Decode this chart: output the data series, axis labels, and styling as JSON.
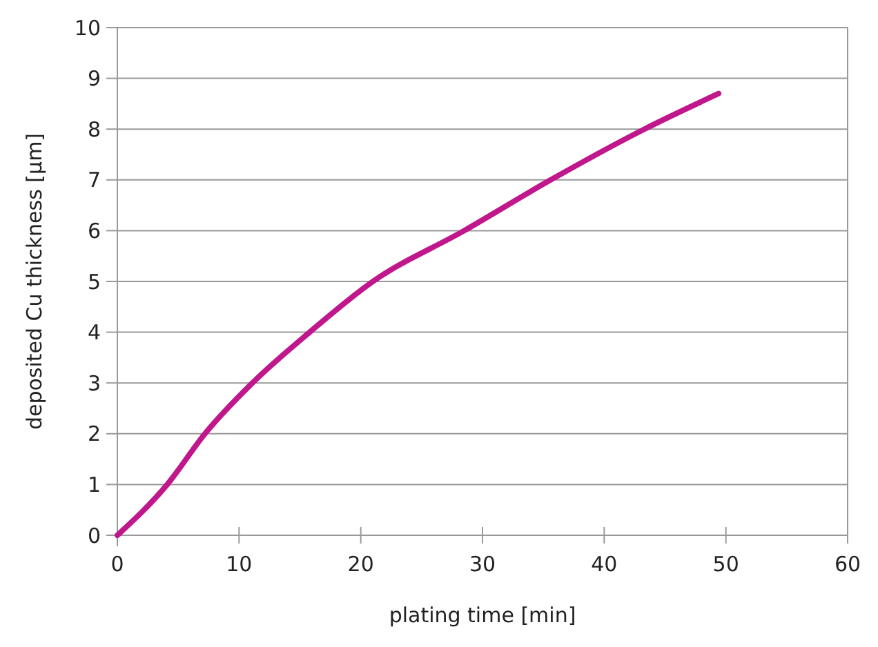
{
  "chart_data": {
    "type": "line",
    "xlabel": "plating time [min]",
    "ylabel": "deposited Cu thickness [µm]",
    "x": [
      0,
      4.1,
      7.2,
      11.1,
      15.8,
      21,
      28.5,
      35.6,
      43.3,
      49.4
    ],
    "series": [
      {
        "color": "#c0188c",
        "values": [
          0,
          1,
          2,
          3,
          4,
          5,
          6,
          7,
          8,
          8.7
        ]
      }
    ],
    "xlim": [
      0,
      60
    ],
    "xticks": [
      0,
      10,
      20,
      30,
      40,
      50,
      60
    ],
    "ylim": [
      0,
      10
    ],
    "yticks": [
      0,
      1,
      2,
      3,
      4,
      5,
      6,
      7,
      8,
      9,
      10
    ],
    "grid": "y",
    "marker": "none",
    "line_style": "solid"
  }
}
